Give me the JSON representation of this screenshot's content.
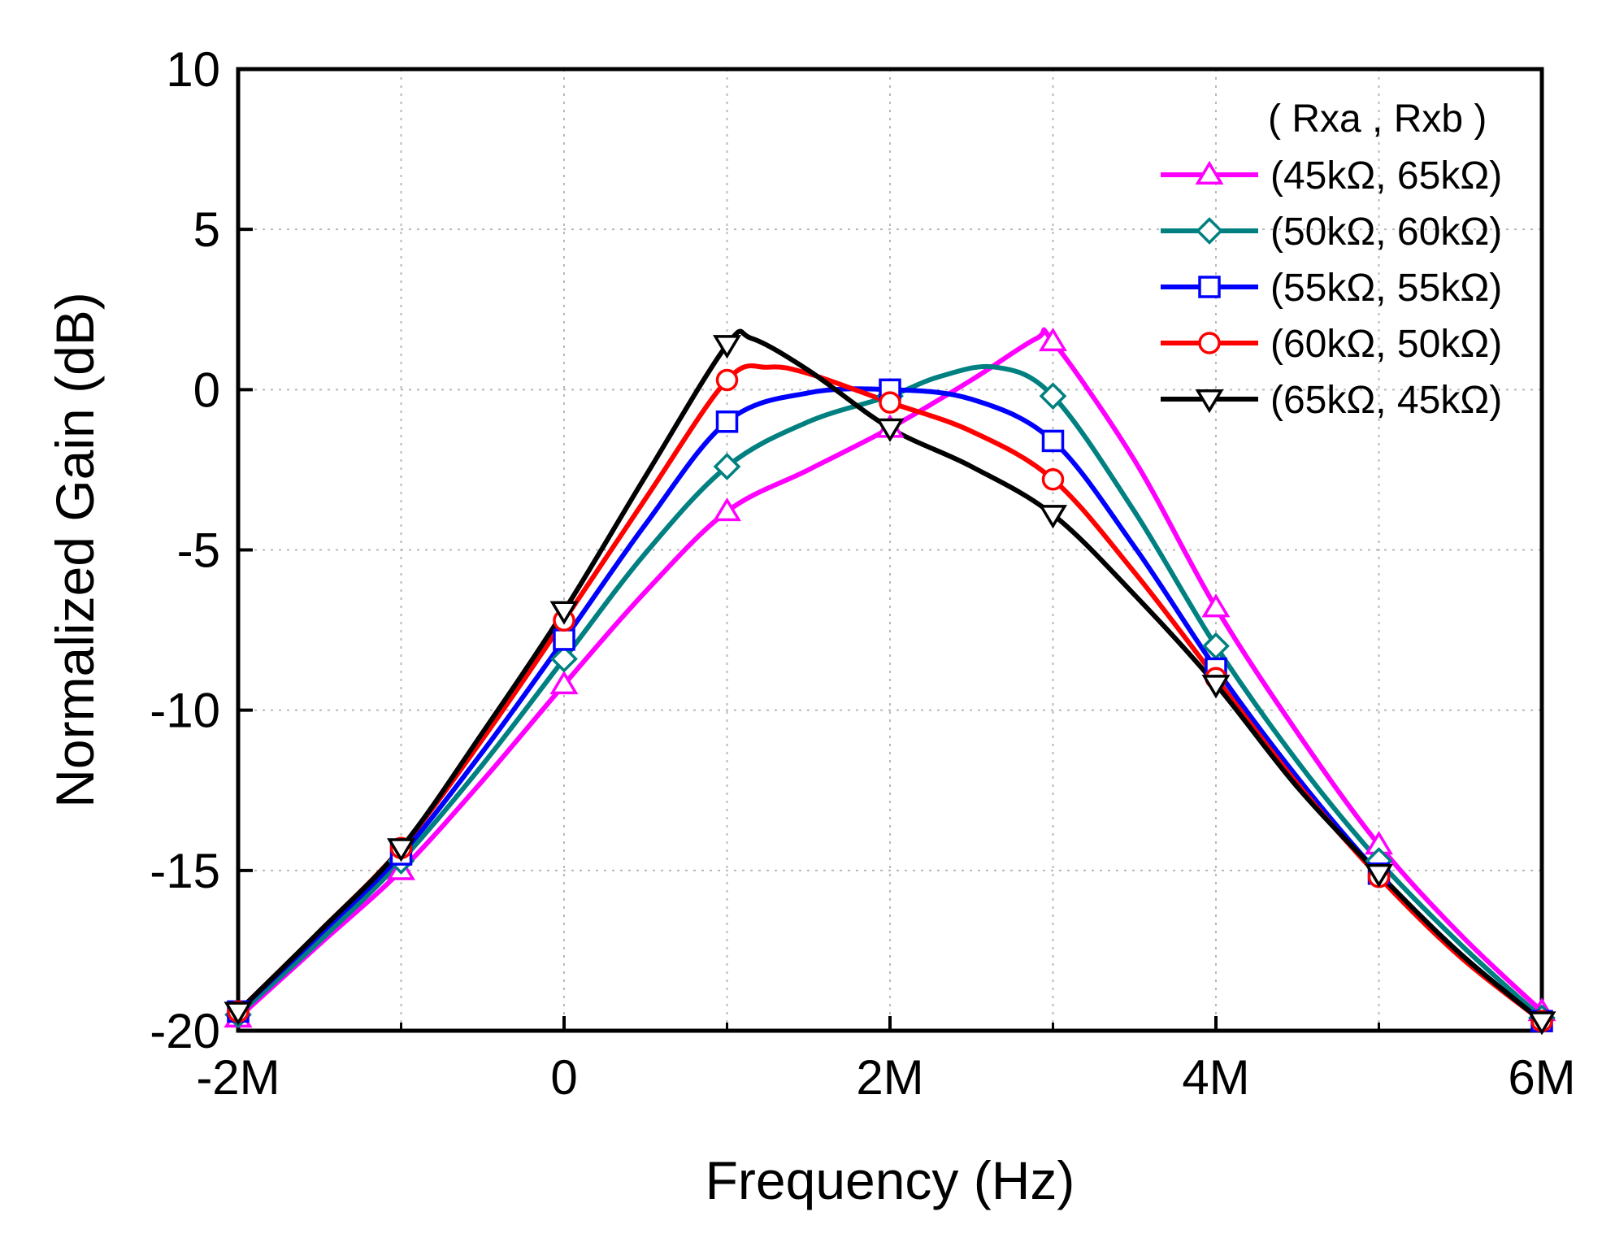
{
  "chart_data": {
    "type": "line",
    "title": "",
    "xlabel": "Frequency (Hz)",
    "ylabel": "Normalized Gain (dB)",
    "xlim": [
      -2000000,
      6000000
    ],
    "ylim": [
      -20,
      10
    ],
    "x_ticks": [
      {
        "value": -2000000,
        "label": "-2M"
      },
      {
        "value": 0,
        "label": "0"
      },
      {
        "value": 2000000,
        "label": "2M"
      },
      {
        "value": 4000000,
        "label": "4M"
      },
      {
        "value": 6000000,
        "label": "6M"
      }
    ],
    "x_minor_ticks": [
      -1000000,
      1000000,
      3000000,
      5000000
    ],
    "y_ticks": [
      {
        "value": 10,
        "label": "10"
      },
      {
        "value": 5,
        "label": "5"
      },
      {
        "value": 0,
        "label": "0"
      },
      {
        "value": -5,
        "label": "-5"
      },
      {
        "value": -10,
        "label": "-10"
      },
      {
        "value": -15,
        "label": "-15"
      },
      {
        "value": -20,
        "label": "-20"
      }
    ],
    "grid": true,
    "legend": {
      "placement": "top-right",
      "title": "( Rxa ,  Rxb )"
    },
    "x": [
      -2000000,
      -1000000,
      0,
      1000000,
      2000000,
      3000000,
      4000000,
      5000000,
      6000000
    ],
    "series": [
      {
        "name": "(45kΩ, 65kΩ)",
        "color": "#ff00ff",
        "marker": "triangle-up",
        "values": [
          -19.6,
          -15.0,
          -9.2,
          -3.8,
          -1.2,
          1.5,
          -6.8,
          -14.2,
          -19.4
        ],
        "curve": [
          [
            -2000000,
            -19.6
          ],
          [
            -1500000,
            -17.3
          ],
          [
            -1000000,
            -15.0
          ],
          [
            -500000,
            -12.2
          ],
          [
            0,
            -9.2
          ],
          [
            500000,
            -6.3
          ],
          [
            1000000,
            -3.8
          ],
          [
            1500000,
            -2.5
          ],
          [
            2000000,
            -1.2
          ],
          [
            2500000,
            0.3
          ],
          [
            2900000,
            1.6
          ],
          [
            3000000,
            1.5
          ],
          [
            3500000,
            -2.2
          ],
          [
            4000000,
            -6.8
          ],
          [
            4500000,
            -10.7
          ],
          [
            5000000,
            -14.2
          ],
          [
            5500000,
            -17.0
          ],
          [
            6000000,
            -19.4
          ]
        ]
      },
      {
        "name": "(50kΩ, 60kΩ)",
        "color": "#008080",
        "marker": "diamond",
        "values": [
          -19.5,
          -14.7,
          -8.4,
          -2.4,
          -0.2,
          -0.2,
          -8.0,
          -14.7,
          -19.6
        ],
        "curve": [
          [
            -2000000,
            -19.5
          ],
          [
            -1500000,
            -17.2
          ],
          [
            -1000000,
            -14.7
          ],
          [
            -500000,
            -11.7
          ],
          [
            0,
            -8.4
          ],
          [
            500000,
            -5.1
          ],
          [
            1000000,
            -2.4
          ],
          [
            1500000,
            -1.0
          ],
          [
            2000000,
            -0.2
          ],
          [
            2300000,
            0.4
          ],
          [
            2650000,
            0.7
          ],
          [
            3000000,
            -0.2
          ],
          [
            3500000,
            -3.8
          ],
          [
            4000000,
            -8.0
          ],
          [
            4500000,
            -11.6
          ],
          [
            5000000,
            -14.7
          ],
          [
            5500000,
            -17.3
          ],
          [
            6000000,
            -19.6
          ]
        ]
      },
      {
        "name": "(55kΩ, 55kΩ)",
        "color": "#0000ff",
        "marker": "square",
        "values": [
          -19.4,
          -14.5,
          -7.8,
          -1.0,
          0.0,
          -1.6,
          -8.7,
          -15.1,
          -19.7
        ],
        "curve": [
          [
            -2000000,
            -19.4
          ],
          [
            -1500000,
            -17.0
          ],
          [
            -1000000,
            -14.5
          ],
          [
            -500000,
            -11.3
          ],
          [
            0,
            -7.8
          ],
          [
            500000,
            -4.2
          ],
          [
            1000000,
            -1.0
          ],
          [
            1500000,
            -0.1
          ],
          [
            2000000,
            0.0
          ],
          [
            2500000,
            -0.3
          ],
          [
            3000000,
            -1.6
          ],
          [
            3500000,
            -4.9
          ],
          [
            4000000,
            -8.7
          ],
          [
            4500000,
            -12.1
          ],
          [
            5000000,
            -15.1
          ],
          [
            5500000,
            -17.6
          ],
          [
            6000000,
            -19.7
          ]
        ]
      },
      {
        "name": "(60kΩ, 50kΩ)",
        "color": "#ff0000",
        "marker": "circle",
        "values": [
          -19.4,
          -14.3,
          -7.2,
          0.3,
          -0.4,
          -2.8,
          -9.0,
          -15.2,
          -19.7
        ],
        "curve": [
          [
            -2000000,
            -19.4
          ],
          [
            -1500000,
            -16.9
          ],
          [
            -1000000,
            -14.3
          ],
          [
            -500000,
            -10.9
          ],
          [
            0,
            -7.2
          ],
          [
            500000,
            -3.4
          ],
          [
            1000000,
            0.3
          ],
          [
            1250000,
            0.7
          ],
          [
            1500000,
            0.5
          ],
          [
            2000000,
            -0.4
          ],
          [
            2500000,
            -1.3
          ],
          [
            3000000,
            -2.8
          ],
          [
            3500000,
            -5.7
          ],
          [
            4000000,
            -9.0
          ],
          [
            4500000,
            -12.3
          ],
          [
            5000000,
            -15.2
          ],
          [
            5500000,
            -17.7
          ],
          [
            6000000,
            -19.7
          ]
        ]
      },
      {
        "name": "(65kΩ, 45kΩ)",
        "color": "#000000",
        "marker": "triangle-down",
        "values": [
          -19.4,
          -14.3,
          -6.9,
          1.4,
          -1.2,
          -3.9,
          -9.2,
          -15.1,
          -19.7
        ],
        "curve": [
          [
            -2000000,
            -19.4
          ],
          [
            -1500000,
            -16.9
          ],
          [
            -1000000,
            -14.3
          ],
          [
            -500000,
            -10.7
          ],
          [
            0,
            -6.9
          ],
          [
            500000,
            -2.7
          ],
          [
            1000000,
            1.4
          ],
          [
            1150000,
            1.6
          ],
          [
            1500000,
            0.6
          ],
          [
            2000000,
            -1.2
          ],
          [
            2500000,
            -2.4
          ],
          [
            3000000,
            -3.9
          ],
          [
            3500000,
            -6.4
          ],
          [
            4000000,
            -9.2
          ],
          [
            4500000,
            -12.4
          ],
          [
            5000000,
            -15.1
          ],
          [
            5500000,
            -17.6
          ],
          [
            6000000,
            -19.7
          ]
        ]
      }
    ]
  }
}
